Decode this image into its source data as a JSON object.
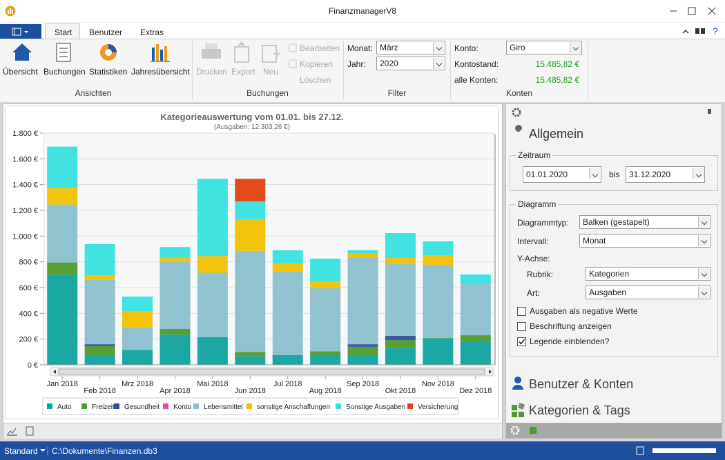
{
  "window": {
    "title": "FinanzmanagerV8"
  },
  "tabs": [
    "Start",
    "Benutzer",
    "Extras"
  ],
  "ribbon": {
    "ansichten": {
      "label": "Ansichten",
      "buttons": [
        "Übersicht",
        "Buchungen",
        "Statistiken",
        "Jahresübersicht"
      ]
    },
    "buchungen": {
      "label": "Buchungen",
      "buttons": [
        "Drucken",
        "Export",
        "Neu"
      ],
      "small": [
        "Bearbeiten",
        "Kopieren",
        "Löschen"
      ]
    },
    "filter": {
      "label": "Filter",
      "monat_label": "Monat:",
      "monat": "März",
      "jahr_label": "Jahr:",
      "jahr": "2020"
    },
    "konten": {
      "label": "Konten",
      "konto_label": "Konto:",
      "konto": "Giro",
      "kontostand_label": "Kontostand:",
      "kontostand": "15.485,82 €",
      "alle_label": "alle Konten:",
      "alle": "15.485,82 €"
    }
  },
  "chart_data": {
    "type": "stacked_bar",
    "title": "Kategorieauswertung vom 01.01. bis 27.12.",
    "subtitle": "(Ausgaben: 12.303,26 €)",
    "categories": [
      "Jan 2018",
      "Feb 2018",
      "Mrz 2018",
      "Apr 2018",
      "Mai 2018",
      "Jun 2018",
      "Jul 2018",
      "Aug 2018",
      "Sep 2018",
      "Okt 2018",
      "Nov 2018",
      "Dez 2018"
    ],
    "ylim": [
      0,
      1800
    ],
    "yticks": [
      {
        "value": 0,
        "label": "0 €"
      },
      {
        "value": 200,
        "label": "200 €"
      },
      {
        "value": 400,
        "label": "400 €"
      },
      {
        "value": 600,
        "label": "600 €"
      },
      {
        "value": 800,
        "label": "800 €"
      },
      {
        "value": 1000,
        "label": "1.000 €"
      },
      {
        "value": 1200,
        "label": "1.200 €"
      },
      {
        "value": 1400,
        "label": "1.400 €"
      },
      {
        "value": 1600,
        "label": "1.600 €"
      },
      {
        "value": 1800,
        "label": "1.800 €"
      }
    ],
    "grid": true,
    "series": [
      {
        "name": "Auto",
        "color": "#0fa39f",
        "values": [
          700,
          75,
          115,
          235,
          215,
          65,
          75,
          70,
          70,
          130,
          205,
          182
        ]
      },
      {
        "name": "Freizeit",
        "color": "#4e9a2c",
        "values": [
          95,
          70,
          0,
          45,
          0,
          35,
          0,
          35,
          70,
          63,
          5,
          48
        ]
      },
      {
        "name": "Gesundheit",
        "color": "#2f50a2",
        "values": [
          0,
          15,
          0,
          0,
          0,
          0,
          0,
          0,
          20,
          32,
          0,
          0
        ]
      },
      {
        "name": "Konto",
        "color": "#e64ca0",
        "values": [
          0,
          0,
          0,
          0,
          0,
          0,
          0,
          0,
          0,
          0,
          0,
          0
        ]
      },
      {
        "name": "Lebensmittel",
        "color": "#8bbfcc",
        "values": [
          450,
          500,
          175,
          520,
          500,
          785,
          650,
          490,
          675,
          562,
          567,
          397
        ]
      },
      {
        "name": "sonstige Anschaffungen",
        "color": "#f0c000",
        "values": [
          130,
          37,
          128,
          30,
          130,
          245,
          62,
          53,
          33,
          43,
          75,
          0
        ]
      },
      {
        "name": "Sonstige Ausgaben",
        "color": "#36e0e0",
        "values": [
          320,
          240,
          112,
          85,
          600,
          140,
          103,
          177,
          22,
          193,
          107,
          75
        ]
      },
      {
        "name": "Versicherung",
        "color": "#e0400f",
        "values": [
          0,
          0,
          0,
          0,
          0,
          175,
          0,
          0,
          0,
          0,
          0,
          0
        ]
      }
    ]
  },
  "panel": {
    "heading": "Allgemein",
    "zeitraum": {
      "label": "Zeitraum",
      "from": "01.01.2020",
      "bis": "bis",
      "to": "31.12.2020"
    },
    "diagramm": {
      "label": "Diagramm",
      "typ_label": "Diagrammtyp:",
      "typ": "Balken (gestapelt)",
      "intervall_label": "Intervall:",
      "intervall": "Monat",
      "yachse": "Y-Achse:",
      "rubrik_label": "Rubrik:",
      "rubrik": "Kategorien",
      "art_label": "Art:",
      "art": "Ausgaben",
      "checks": [
        {
          "label": "Ausgaben als negative Werte",
          "checked": false
        },
        {
          "label": "Beschriftung anzeigen",
          "checked": false
        },
        {
          "label": "Legende einblenden?",
          "checked": true
        }
      ]
    },
    "sections": [
      "Benutzer & Konten",
      "Kategorien & Tags"
    ]
  },
  "statusbar": {
    "mode": "Standard",
    "path": "C:\\Dokumente\\Finanzen.db3"
  }
}
